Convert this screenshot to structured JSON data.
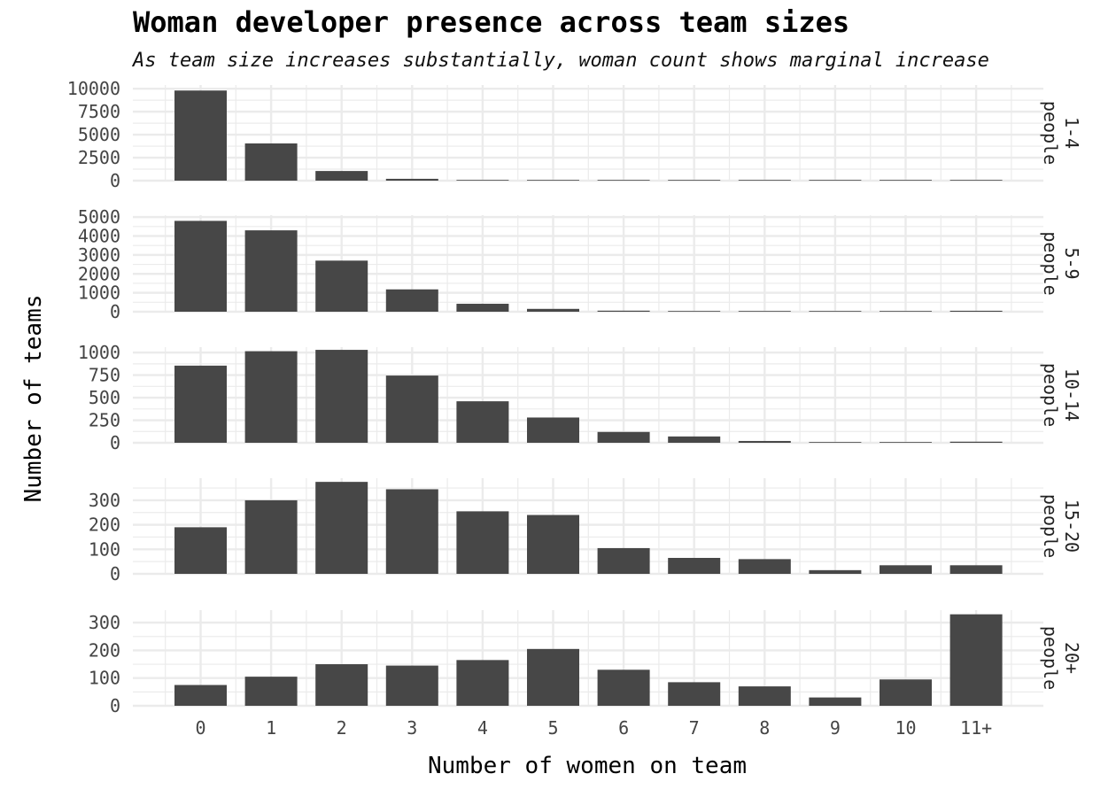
{
  "chart_data": {
    "type": "bar",
    "title": "Woman developer presence across team sizes",
    "subtitle": "As team size increases substantially, woman count shows marginal increase",
    "xlabel": "Number of women on team",
    "ylabel": "Number of teams",
    "categories": [
      "0",
      "1",
      "2",
      "3",
      "4",
      "5",
      "6",
      "7",
      "8",
      "9",
      "10",
      "11+"
    ],
    "bar_color": "#474747",
    "grid_color": "#ebebeb",
    "grid": true,
    "panels": [
      {
        "name": "1-4 people",
        "strip_lines": [
          "1-4",
          "people"
        ],
        "ylim": [
          0,
          10400
        ],
        "yticks": [
          0,
          2500,
          5000,
          7500,
          10000
        ],
        "minor_ticks": [
          1250,
          3750,
          6250,
          8750
        ],
        "values": [
          9800,
          4050,
          1050,
          200,
          60,
          30,
          10,
          5,
          5,
          5,
          15,
          40
        ]
      },
      {
        "name": "5-9 people",
        "strip_lines": [
          "5-9",
          "people"
        ],
        "ylim": [
          0,
          5100
        ],
        "yticks": [
          0,
          1000,
          2000,
          3000,
          4000,
          5000
        ],
        "minor_ticks": [
          500,
          1500,
          2500,
          3500,
          4500
        ],
        "values": [
          4800,
          4300,
          2700,
          1180,
          420,
          150,
          55,
          30,
          15,
          10,
          20,
          50
        ]
      },
      {
        "name": "10-14 people",
        "strip_lines": [
          "10-14",
          "people"
        ],
        "ylim": [
          0,
          1060
        ],
        "yticks": [
          0,
          250,
          500,
          750,
          1000
        ],
        "minor_ticks": [
          125,
          375,
          625,
          875
        ],
        "values": [
          855,
          1015,
          1030,
          745,
          460,
          280,
          120,
          70,
          20,
          8,
          8,
          12
        ]
      },
      {
        "name": "15-20 people",
        "strip_lines": [
          "15-20",
          "people"
        ],
        "ylim": [
          0,
          390
        ],
        "yticks": [
          0,
          100,
          200,
          300
        ],
        "minor_ticks": [
          50,
          150,
          250,
          350
        ],
        "values": [
          190,
          300,
          375,
          345,
          255,
          240,
          105,
          65,
          60,
          15,
          35,
          35
        ]
      },
      {
        "name": "20+ people",
        "strip_lines": [
          "20+",
          "people"
        ],
        "ylim": [
          0,
          345
        ],
        "yticks": [
          0,
          100,
          200,
          300
        ],
        "minor_ticks": [
          50,
          150,
          250
        ],
        "values": [
          75,
          105,
          150,
          145,
          165,
          205,
          130,
          85,
          70,
          30,
          95,
          330
        ]
      }
    ]
  }
}
